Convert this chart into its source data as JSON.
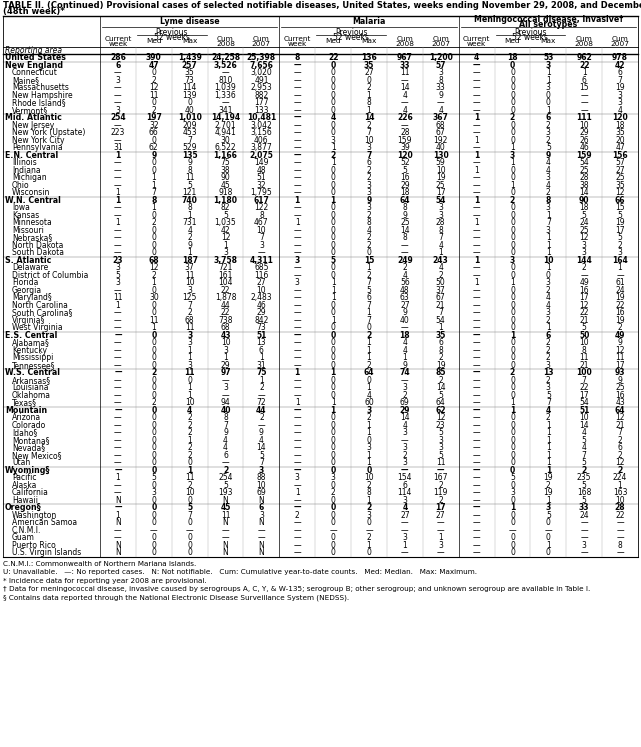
{
  "title_line1": "TABLE II. (Continued) Provisional cases of selected notifiable diseases, United States, weeks ending November 29, 2008, and December 1, 2007",
  "title_line2": "(48th week)*",
  "rows": [
    [
      "United States",
      "286",
      "390",
      "1,439",
      "24,258",
      "25,398",
      "8",
      "22",
      "136",
      "967",
      "1,200",
      "4",
      "18",
      "53",
      "962",
      "978"
    ],
    [
      "New England",
      "6",
      "47",
      "257",
      "3,526",
      "7,656",
      "—",
      "0",
      "35",
      "33",
      "57",
      "—",
      "0",
      "3",
      "22",
      "42"
    ],
    [
      "Connecticut",
      "—",
      "0",
      "35",
      "—",
      "3,020",
      "—",
      "0",
      "27",
      "11",
      "3",
      "—",
      "0",
      "1",
      "1",
      "6"
    ],
    [
      "Maine§",
      "3",
      "2",
      "73",
      "810",
      "491",
      "—",
      "0",
      "0",
      "—",
      "8",
      "—",
      "0",
      "1",
      "6",
      "7"
    ],
    [
      "Massachusetts",
      "—",
      "12",
      "114",
      "1,039",
      "2,953",
      "—",
      "0",
      "2",
      "14",
      "33",
      "—",
      "0",
      "3",
      "15",
      "19"
    ],
    [
      "New Hampshire",
      "—",
      "11",
      "139",
      "1,336",
      "882",
      "—",
      "0",
      "1",
      "4",
      "9",
      "—",
      "0",
      "0",
      "—",
      "3"
    ],
    [
      "Rhode Island§",
      "—",
      "0",
      "0",
      "—",
      "177",
      "—",
      "0",
      "8",
      "—",
      "—",
      "—",
      "0",
      "0",
      "—",
      "3"
    ],
    [
      "Vermont§",
      "3",
      "2",
      "40",
      "341",
      "133",
      "—",
      "0",
      "1",
      "4",
      "4",
      "—",
      "0",
      "1",
      "—",
      "4"
    ],
    [
      "Mid. Atlantic",
      "254",
      "197",
      "1,010",
      "14,194",
      "10,481",
      "—",
      "4",
      "14",
      "226",
      "367",
      "1",
      "2",
      "6",
      "111",
      "120"
    ],
    [
      "New Jersey",
      "—",
      "32",
      "209",
      "2,701",
      "3,042",
      "—",
      "0",
      "2",
      "—",
      "68",
      "—",
      "0",
      "2",
      "10",
      "18"
    ],
    [
      "New York (Upstate)",
      "223",
      "66",
      "453",
      "4,941",
      "3,156",
      "—",
      "0",
      "7",
      "28",
      "67",
      "—",
      "0",
      "3",
      "29",
      "35"
    ],
    [
      "New York City",
      "—",
      "0",
      "7",
      "30",
      "406",
      "—",
      "3",
      "10",
      "159",
      "192",
      "1",
      "0",
      "2",
      "26",
      "20"
    ],
    [
      "Pennsylvania",
      "31",
      "62",
      "529",
      "6,522",
      "3,877",
      "—",
      "1",
      "3",
      "39",
      "40",
      "—",
      "1",
      "5",
      "46",
      "47"
    ],
    [
      "E.N. Central",
      "1",
      "9",
      "135",
      "1,166",
      "2,075",
      "—",
      "2",
      "7",
      "120",
      "130",
      "1",
      "3",
      "9",
      "159",
      "156"
    ],
    [
      "Illinois",
      "—",
      "0",
      "9",
      "75",
      "149",
      "—",
      "1",
      "6",
      "52",
      "59",
      "—",
      "1",
      "4",
      "54",
      "57"
    ],
    [
      "Indiana",
      "—",
      "0",
      "8",
      "38",
      "48",
      "—",
      "0",
      "2",
      "5",
      "10",
      "1",
      "0",
      "4",
      "25",
      "27"
    ],
    [
      "Michigan",
      "—",
      "1",
      "11",
      "90",
      "51",
      "—",
      "0",
      "2",
      "16",
      "19",
      "—",
      "0",
      "3",
      "28",
      "25"
    ],
    [
      "Ohio",
      "—",
      "1",
      "5",
      "45",
      "32",
      "—",
      "0",
      "3",
      "29",
      "25",
      "—",
      "1",
      "4",
      "38",
      "35"
    ],
    [
      "Wisconsin",
      "1",
      "7",
      "121",
      "918",
      "1,795",
      "—",
      "0",
      "3",
      "18",
      "17",
      "—",
      "0",
      "2",
      "14",
      "12"
    ],
    [
      "W.N. Central",
      "1",
      "8",
      "740",
      "1,180",
      "617",
      "1",
      "1",
      "9",
      "64",
      "54",
      "1",
      "2",
      "8",
      "90",
      "66"
    ],
    [
      "Iowa",
      "—",
      "1",
      "8",
      "82",
      "122",
      "—",
      "0",
      "3",
      "8",
      "3",
      "—",
      "0",
      "3",
      "18",
      "15"
    ],
    [
      "Kansas",
      "—",
      "0",
      "1",
      "5",
      "8",
      "—",
      "0",
      "2",
      "9",
      "3",
      "—",
      "0",
      "1",
      "5",
      "5"
    ],
    [
      "Minnesota",
      "1",
      "2",
      "731",
      "1,035",
      "467",
      "1",
      "0",
      "8",
      "25",
      "28",
      "1",
      "0",
      "7",
      "24",
      "19"
    ],
    [
      "Missouri",
      "—",
      "0",
      "4",
      "42",
      "10",
      "—",
      "0",
      "4",
      "14",
      "8",
      "—",
      "0",
      "3",
      "25",
      "17"
    ],
    [
      "Nebraska§",
      "—",
      "0",
      "2",
      "12",
      "7",
      "—",
      "0",
      "2",
      "8",
      "7",
      "—",
      "0",
      "1",
      "12",
      "5"
    ],
    [
      "North Dakota",
      "—",
      "0",
      "9",
      "1",
      "3",
      "—",
      "0",
      "2",
      "—",
      "4",
      "—",
      "0",
      "1",
      "3",
      "2"
    ],
    [
      "South Dakota",
      "—",
      "0",
      "1",
      "3",
      "—",
      "—",
      "0",
      "0",
      "—",
      "1",
      "—",
      "0",
      "1",
      "3",
      "3"
    ],
    [
      "S. Atlantic",
      "23",
      "68",
      "187",
      "3,758",
      "4,311",
      "3",
      "5",
      "15",
      "249",
      "243",
      "1",
      "3",
      "10",
      "144",
      "164"
    ],
    [
      "Delaware",
      "3",
      "12",
      "37",
      "721",
      "685",
      "—",
      "0",
      "1",
      "2",
      "4",
      "—",
      "0",
      "1",
      "2",
      "1"
    ],
    [
      "District of Columbia",
      "5",
      "2",
      "11",
      "161",
      "116",
      "—",
      "0",
      "2",
      "4",
      "2",
      "—",
      "0",
      "0",
      "—",
      "—"
    ],
    [
      "Florida",
      "3",
      "1",
      "10",
      "104",
      "27",
      "3",
      "1",
      "7",
      "56",
      "50",
      "1",
      "1",
      "3",
      "49",
      "61"
    ],
    [
      "Georgia",
      "—",
      "0",
      "3",
      "22",
      "10",
      "—",
      "1",
      "5",
      "48",
      "37",
      "—",
      "0",
      "2",
      "16",
      "24"
    ],
    [
      "Maryland§",
      "11",
      "30",
      "125",
      "1,878",
      "2,483",
      "—",
      "1",
      "6",
      "63",
      "67",
      "—",
      "0",
      "4",
      "17",
      "19"
    ],
    [
      "North Carolina",
      "1",
      "0",
      "7",
      "44",
      "46",
      "—",
      "0",
      "7",
      "27",
      "21",
      "—",
      "0",
      "4",
      "12",
      "22"
    ],
    [
      "South Carolina§",
      "—",
      "0",
      "2",
      "22",
      "29",
      "—",
      "0",
      "1",
      "9",
      "7",
      "—",
      "0",
      "3",
      "22",
      "16"
    ],
    [
      "Virginia§",
      "—",
      "11",
      "68",
      "738",
      "842",
      "—",
      "1",
      "7",
      "40",
      "54",
      "—",
      "0",
      "2",
      "21",
      "19"
    ],
    [
      "West Virginia",
      "—",
      "1",
      "11",
      "68",
      "73",
      "—",
      "0",
      "0",
      "—",
      "1",
      "—",
      "0",
      "1",
      "5",
      "2"
    ],
    [
      "E.S. Central",
      "—",
      "0",
      "3",
      "43",
      "51",
      "—",
      "0",
      "2",
      "18",
      "35",
      "—",
      "1",
      "6",
      "50",
      "49"
    ],
    [
      "Alabama§",
      "—",
      "0",
      "3",
      "10",
      "13",
      "—",
      "0",
      "1",
      "4",
      "6",
      "—",
      "0",
      "2",
      "10",
      "9"
    ],
    [
      "Kentucky",
      "—",
      "0",
      "1",
      "3",
      "6",
      "—",
      "0",
      "1",
      "4",
      "8",
      "—",
      "0",
      "2",
      "8",
      "12"
    ],
    [
      "Mississippi",
      "—",
      "0",
      "1",
      "1",
      "1",
      "—",
      "0",
      "1",
      "1",
      "2",
      "—",
      "0",
      "2",
      "11",
      "11"
    ],
    [
      "Tennessee§",
      "—",
      "0",
      "3",
      "29",
      "31",
      "—",
      "0",
      "2",
      "9",
      "19",
      "—",
      "0",
      "3",
      "21",
      "17"
    ],
    [
      "W.S. Central",
      "—",
      "2",
      "11",
      "97",
      "75",
      "1",
      "1",
      "64",
      "74",
      "85",
      "—",
      "2",
      "13",
      "100",
      "93"
    ],
    [
      "Arkansas§",
      "—",
      "0",
      "0",
      "—",
      "1",
      "—",
      "0",
      "0",
      "—",
      "2",
      "—",
      "0",
      "2",
      "7",
      "9"
    ],
    [
      "Louisiana",
      "—",
      "0",
      "1",
      "3",
      "2",
      "—",
      "0",
      "1",
      "3",
      "14",
      "—",
      "0",
      "3",
      "22",
      "25"
    ],
    [
      "Oklahoma",
      "—",
      "0",
      "1",
      "—",
      "—",
      "—",
      "0",
      "4",
      "2",
      "5",
      "—",
      "0",
      "5",
      "17",
      "16"
    ],
    [
      "Texas§",
      "—",
      "2",
      "10",
      "94",
      "72",
      "1",
      "1",
      "60",
      "69",
      "64",
      "—",
      "1",
      "7",
      "54",
      "43"
    ],
    [
      "Mountain",
      "—",
      "0",
      "4",
      "40",
      "44",
      "—",
      "1",
      "3",
      "29",
      "62",
      "—",
      "1",
      "4",
      "51",
      "64"
    ],
    [
      "Arizona",
      "—",
      "0",
      "2",
      "8",
      "2",
      "—",
      "0",
      "2",
      "14",
      "12",
      "—",
      "0",
      "2",
      "10",
      "12"
    ],
    [
      "Colorado",
      "—",
      "0",
      "2",
      "7",
      "—",
      "—",
      "0",
      "1",
      "4",
      "23",
      "—",
      "0",
      "1",
      "14",
      "21"
    ],
    [
      "Idaho§",
      "—",
      "0",
      "2",
      "9",
      "9",
      "—",
      "0",
      "1",
      "3",
      "5",
      "—",
      "0",
      "1",
      "4",
      "7"
    ],
    [
      "Montana§",
      "—",
      "0",
      "1",
      "4",
      "4",
      "—",
      "0",
      "0",
      "—",
      "3",
      "—",
      "0",
      "1",
      "5",
      "2"
    ],
    [
      "Nevada§",
      "—",
      "0",
      "2",
      "4",
      "14",
      "—",
      "0",
      "3",
      "3",
      "3",
      "—",
      "0",
      "1",
      "4",
      "6"
    ],
    [
      "New Mexico§",
      "—",
      "0",
      "2",
      "6",
      "5",
      "—",
      "0",
      "1",
      "2",
      "5",
      "—",
      "0",
      "1",
      "7",
      "2"
    ],
    [
      "Utah",
      "—",
      "0",
      "0",
      "—",
      "7",
      "—",
      "0",
      "1",
      "3",
      "11",
      "—",
      "0",
      "1",
      "5",
      "12"
    ],
    [
      "Wyoming§",
      "—",
      "0",
      "1",
      "2",
      "3",
      "—",
      "0",
      "0",
      "—",
      "—",
      "—",
      "0",
      "1",
      "2",
      "2"
    ],
    [
      "Pacific",
      "1",
      "5",
      "11",
      "254",
      "88",
      "3",
      "3",
      "10",
      "154",
      "167",
      "—",
      "5",
      "19",
      "235",
      "224"
    ],
    [
      "Alaska",
      "—",
      "0",
      "2",
      "5",
      "10",
      "—",
      "0",
      "2",
      "6",
      "2",
      "—",
      "0",
      "2",
      "5",
      "1"
    ],
    [
      "California",
      "—",
      "3",
      "10",
      "193",
      "69",
      "1",
      "2",
      "8",
      "114",
      "119",
      "—",
      "3",
      "19",
      "168",
      "163"
    ],
    [
      "Hawaii",
      "N",
      "0",
      "0",
      "N",
      "N",
      "—",
      "0",
      "1",
      "3",
      "2",
      "—",
      "0",
      "1",
      "5",
      "10"
    ],
    [
      "Oregon§",
      "—",
      "0",
      "5",
      "45",
      "6",
      "—",
      "0",
      "2",
      "4",
      "17",
      "—",
      "1",
      "3",
      "33",
      "28"
    ],
    [
      "Washington",
      "1",
      "0",
      "7",
      "11",
      "3",
      "2",
      "0",
      "3",
      "27",
      "27",
      "—",
      "0",
      "5",
      "24",
      "22"
    ],
    [
      "American Samoa",
      "N",
      "0",
      "0",
      "N",
      "N",
      "—",
      "0",
      "0",
      "—",
      "—",
      "—",
      "0",
      "0",
      "—",
      "—"
    ],
    [
      "C.N.M.I.",
      "—",
      "—",
      "—",
      "—",
      "—",
      "—",
      "—",
      "—",
      "—",
      "—",
      "—",
      "—",
      "—",
      "—",
      "—"
    ],
    [
      "Guam",
      "—",
      "0",
      "0",
      "—",
      "—",
      "—",
      "0",
      "2",
      "3",
      "1",
      "—",
      "0",
      "0",
      "—",
      "—"
    ],
    [
      "Puerto Rico",
      "N",
      "0",
      "0",
      "N",
      "N",
      "—",
      "0",
      "1",
      "1",
      "3",
      "—",
      "0",
      "1",
      "3",
      "8"
    ],
    [
      "U.S. Virgin Islands",
      "N",
      "0",
      "0",
      "N",
      "N",
      "—",
      "0",
      "0",
      "—",
      "—",
      "—",
      "0",
      "0",
      "—",
      "—"
    ]
  ],
  "bold_rows": [
    0,
    1,
    8,
    13,
    19,
    27,
    37,
    42,
    47,
    55,
    60
  ],
  "footnotes": [
    "C.N.M.I.: Commonwealth of Northern Mariana Islands.",
    "U: Unavailable.   —: No reported cases.   N: Not notifiable.   Cum: Cumulative year-to-date counts.   Med: Median.   Max: Maximum.",
    "* Incidence data for reporting year 2008 are provisional.",
    "† Data for meningococcal disease, invasive caused by serogroups A, C, Y, & W-135; serogroup B; other serogroup; and unknown serogroup are available in Table I.",
    "§ Contains data reported through the National Electronic Disease Surveillance System (NEDSS)."
  ]
}
